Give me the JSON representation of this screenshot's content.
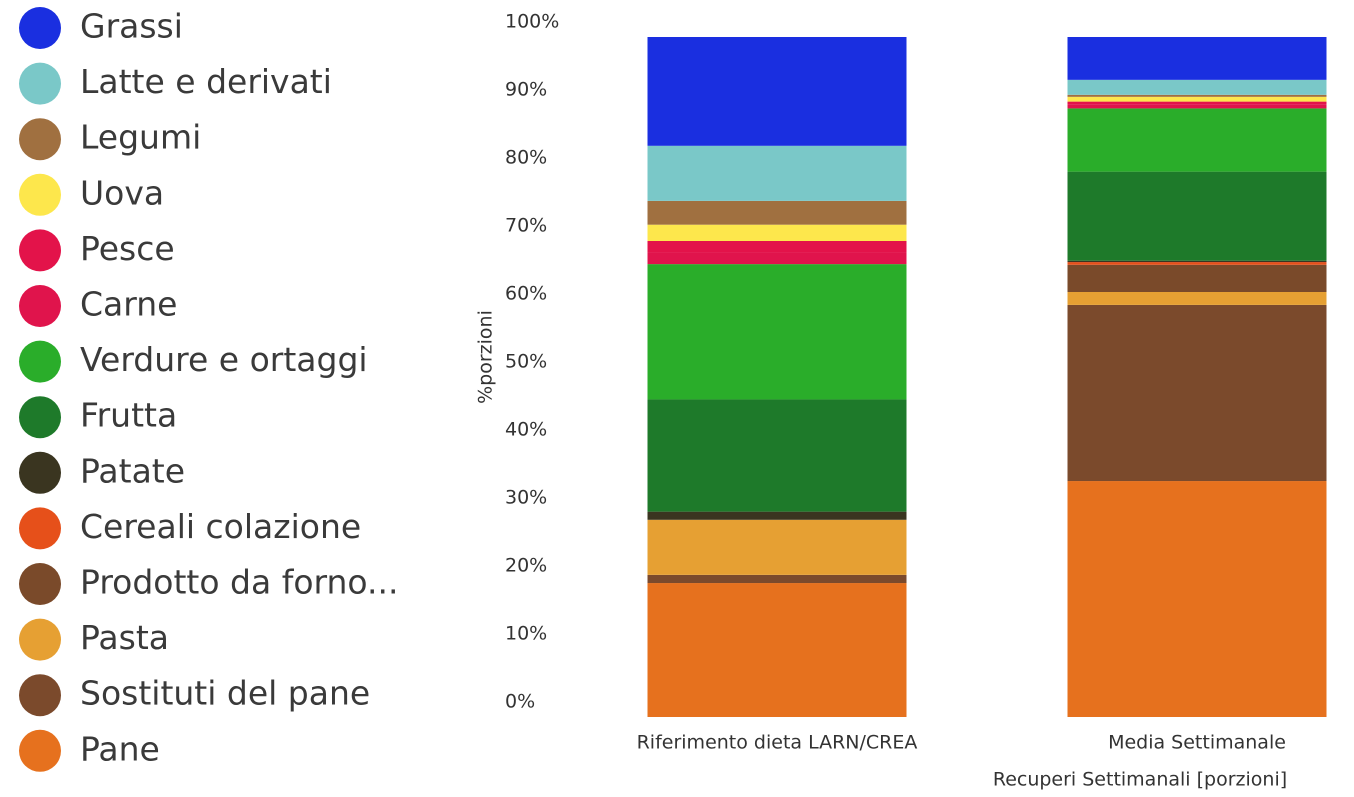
{
  "chart_data": {
    "type": "stacked_bar",
    "x_label": "Recuperi Settimanali [porzioni]",
    "y_label": "%porzioni",
    "categories": [
      "Riferimento dieta LARN/CREA",
      "Media Settimanale"
    ],
    "ylim": [
      0,
      100
    ],
    "yticks": [
      {
        "value": 0,
        "label": "0%"
      },
      {
        "value": 10,
        "label": "10%"
      },
      {
        "value": 20,
        "label": "20%"
      },
      {
        "value": 30,
        "label": "30%"
      },
      {
        "value": 40,
        "label": "40%"
      },
      {
        "value": 50,
        "label": "50%"
      },
      {
        "value": 60,
        "label": "60%"
      },
      {
        "value": 70,
        "label": "70%"
      },
      {
        "value": 80,
        "label": "80%"
      },
      {
        "value": 90,
        "label": "90%"
      },
      {
        "value": 100,
        "label": "100%"
      }
    ],
    "grid": false,
    "series": [
      {
        "name": "Pane",
        "color": "#e6711e",
        "values": [
          19.7,
          34.7
        ]
      },
      {
        "name": "Sostituti del pane",
        "color": "#7b4a2c",
        "values": [
          1.2,
          25.9
        ]
      },
      {
        "name": "Pasta",
        "color": "#e6a033",
        "values": [
          8.1,
          1.9
        ]
      },
      {
        "name": "Prodotto da forno...",
        "color": "#7a4a2a",
        "values": [
          0,
          4.0
        ]
      },
      {
        "name": "Cereali colazione",
        "color": "#e6501a",
        "values": [
          0,
          0.4
        ]
      },
      {
        "name": "Patate",
        "color": "#3a3520",
        "values": [
          1.2,
          0.2
        ]
      },
      {
        "name": "Frutta",
        "color": "#1e7a2a",
        "values": [
          16.5,
          13.1
        ]
      },
      {
        "name": "Verdure e ortaggi",
        "color": "#2aad2a",
        "values": [
          19.9,
          9.3
        ]
      },
      {
        "name": "Carne",
        "color": "#e0144c",
        "values": [
          1.7,
          0.6
        ]
      },
      {
        "name": "Pesce",
        "color": "#e3134a",
        "values": [
          1.7,
          0.4
        ]
      },
      {
        "name": "Uova",
        "color": "#fde74c",
        "values": [
          2.4,
          0.7
        ]
      },
      {
        "name": "Legumi",
        "color": "#a07040",
        "values": [
          3.5,
          0.3
        ]
      },
      {
        "name": "Latte e derivati",
        "color": "#7ac8c8",
        "values": [
          8.1,
          2.2
        ]
      },
      {
        "name": "Grassi",
        "color": "#1a2fe0",
        "values": [
          16.0,
          6.3
        ]
      }
    ]
  }
}
